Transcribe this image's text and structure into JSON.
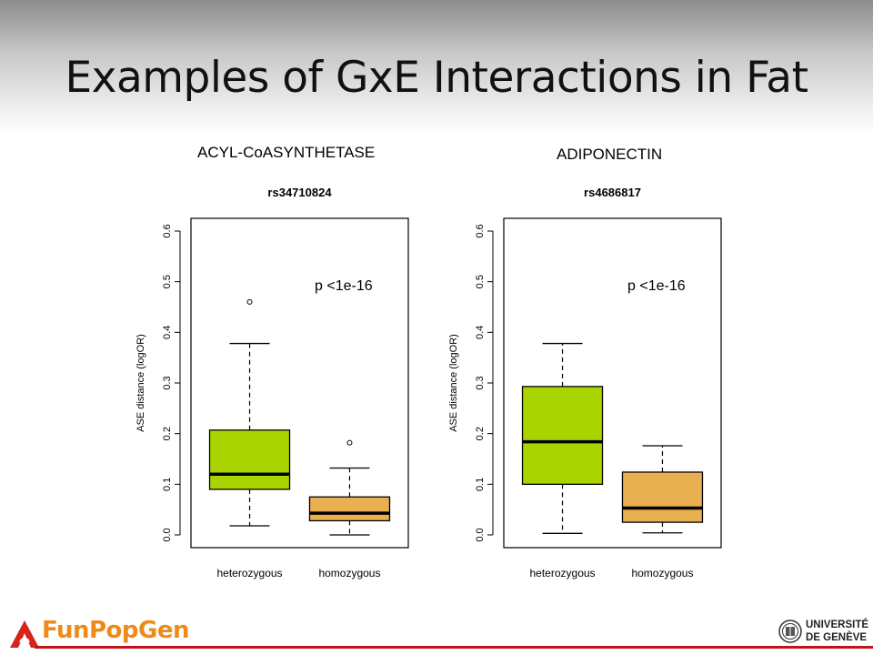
{
  "slide": {
    "title": "Examples of GxE Interactions in Fat"
  },
  "genes": {
    "left": "ACYL-CoASYNTHETASE",
    "right": "ADIPONECTIN"
  },
  "brand": {
    "text": "FunPopGen"
  },
  "university": {
    "line1": "UNIVERSITÉ",
    "line2": "DE GENÈVE"
  },
  "colors": {
    "heterozygous_fill": "#aad400",
    "homozygous_fill": "#e8b050",
    "footer_line": "#c0141c",
    "brand_orange": "#ef8a1a"
  },
  "chart_data": [
    {
      "type": "box",
      "title": "rs34710824",
      "ylabel": "ASE distance (logOR)",
      "xlabel": "",
      "ylim": [
        0.0,
        0.6
      ],
      "yticks": [
        "0.0",
        "0.1",
        "0.2",
        "0.3",
        "0.4",
        "0.5",
        "0.6"
      ],
      "annotation": "p <1e-16",
      "categories": [
        "heterozygous",
        "homozygous"
      ],
      "boxes": [
        {
          "category": "heterozygous",
          "whisker_low": 0.018,
          "q1": 0.09,
          "median": 0.12,
          "q3": 0.207,
          "whisker_high": 0.378,
          "outliers": [
            0.46
          ]
        },
        {
          "category": "homozygous",
          "whisker_low": 0.0,
          "q1": 0.028,
          "median": 0.043,
          "q3": 0.075,
          "whisker_high": 0.132,
          "outliers": [
            0.182
          ]
        }
      ]
    },
    {
      "type": "box",
      "title": "rs4686817",
      "ylabel": "ASE distance (logOR)",
      "xlabel": "",
      "ylim": [
        0.0,
        0.6
      ],
      "yticks": [
        "0.0",
        "0.1",
        "0.2",
        "0.3",
        "0.4",
        "0.5",
        "0.6"
      ],
      "annotation": "p <1e-16",
      "categories": [
        "heterozygous",
        "homozygous"
      ],
      "boxes": [
        {
          "category": "heterozygous",
          "whisker_low": 0.003,
          "q1": 0.1,
          "median": 0.184,
          "q3": 0.293,
          "whisker_high": 0.378,
          "outliers": []
        },
        {
          "category": "homozygous",
          "whisker_low": 0.004,
          "q1": 0.025,
          "median": 0.053,
          "q3": 0.124,
          "whisker_high": 0.176,
          "outliers": []
        }
      ]
    }
  ]
}
